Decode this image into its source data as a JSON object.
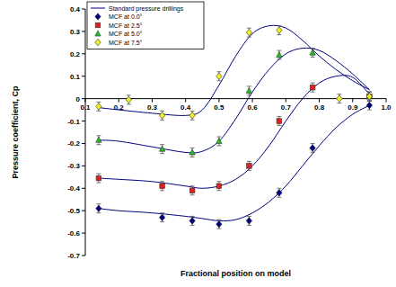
{
  "chart_data": {
    "type": "scatter",
    "x_label": "Fractional position on model",
    "y_label": "Pressure coefficient, Cp",
    "xlim": [
      0.1,
      1
    ],
    "ylim": [
      -0.7,
      0.4
    ],
    "xticks": [
      0.1,
      0.2,
      0.3,
      0.4,
      0.5,
      0.6,
      0.7,
      0.8,
      0.9,
      {
        "value": 1,
        "label": "1.0"
      }
    ],
    "yticks": [
      -0.7,
      -0.6,
      -0.5,
      -0.4,
      -0.3,
      -0.2,
      -0.1,
      0,
      0.1,
      0.2,
      0.3,
      0.4
    ],
    "grid": false,
    "legend": "upper left",
    "series": [
      {
        "name": "Standard pressure drillings",
        "type": "line",
        "color": "#000080",
        "line_style": "solid",
        "x": [
          0.14,
          0.2,
          0.3,
          0.4,
          0.45,
          0.5,
          0.55,
          0.6,
          0.65,
          0.7,
          0.75,
          0.8,
          0.85,
          0.9,
          0.95,
          null,
          0.14,
          0.2,
          0.3,
          0.4,
          0.45,
          0.5,
          0.55,
          0.6,
          0.65,
          0.7,
          0.75,
          0.8,
          0.85,
          0.9,
          0.95,
          null,
          0.14,
          0.2,
          0.3,
          0.4,
          0.45,
          0.5,
          0.55,
          0.6,
          0.65,
          0.7,
          0.75,
          0.8,
          0.85,
          0.9,
          0.95,
          null,
          0.14,
          0.2,
          0.3,
          0.4,
          0.45,
          0.5,
          0.55,
          0.6,
          0.65,
          0.7,
          0.75,
          0.8,
          0.85,
          0.9,
          0.95
        ],
        "values": [
          -0.49,
          -0.5,
          -0.51,
          -0.525,
          -0.535,
          -0.545,
          -0.54,
          -0.51,
          -0.46,
          -0.39,
          -0.3,
          -0.21,
          -0.13,
          -0.07,
          -0.03,
          null,
          -0.355,
          -0.36,
          -0.37,
          -0.39,
          -0.4,
          -0.39,
          -0.36,
          -0.3,
          -0.21,
          -0.1,
          0.0,
          0.07,
          0.1,
          0.095,
          0.02,
          null,
          -0.185,
          -0.19,
          -0.215,
          -0.24,
          -0.235,
          -0.19,
          -0.09,
          0.03,
          0.13,
          0.2,
          0.225,
          0.215,
          0.17,
          0.11,
          0.04,
          null,
          -0.04,
          -0.05,
          -0.065,
          -0.075,
          -0.05,
          0.06,
          0.19,
          0.29,
          0.325,
          0.315,
          0.26,
          0.19,
          0.13,
          0.08,
          0.04
        ]
      },
      {
        "name": "MCF at 0.0°",
        "type": "scatter",
        "color": "#000080",
        "marker": "diamond",
        "x": [
          0.14,
          0.33,
          0.42,
          0.5,
          0.59,
          0.68,
          0.78,
          0.95
        ],
        "values": [
          -0.49,
          -0.53,
          -0.545,
          -0.56,
          -0.545,
          -0.42,
          -0.22,
          -0.03
        ],
        "errors": [
          0.02,
          0.02,
          0.02,
          0.02,
          0.02,
          0.02,
          0.02,
          0.02
        ]
      },
      {
        "name": "MCF at 2.5°",
        "type": "scatter",
        "color": "#e02020",
        "marker": "square",
        "x": [
          0.14,
          0.33,
          0.42,
          0.5,
          0.59,
          0.68,
          0.78,
          0.95
        ],
        "values": [
          -0.355,
          -0.39,
          -0.41,
          -0.39,
          -0.3,
          -0.1,
          0.05,
          0.01
        ],
        "errors": [
          0.02,
          0.02,
          0.02,
          0.02,
          0.02,
          0.02,
          0.02,
          0.02
        ]
      },
      {
        "name": "MCF at 5.0°",
        "type": "scatter",
        "color": "#20c020",
        "marker": "triangle",
        "x": [
          0.14,
          0.33,
          0.42,
          0.5,
          0.59,
          0.68,
          0.78,
          0.95
        ],
        "values": [
          -0.185,
          -0.225,
          -0.24,
          -0.19,
          0.035,
          0.195,
          0.205,
          0.01
        ],
        "errors": [
          0.02,
          0.02,
          0.02,
          0.02,
          0.02,
          0.02,
          0.02,
          0.02
        ]
      },
      {
        "name": "MCF at 7.5°",
        "type": "scatter",
        "color": "#f0f020",
        "marker": "diamond",
        "x": [
          0.14,
          0.23,
          0.33,
          0.42,
          0.5,
          0.59,
          0.68,
          0.86,
          0.95
        ],
        "values": [
          -0.035,
          -0.005,
          -0.075,
          -0.075,
          0.1,
          0.295,
          0.305,
          0.0,
          0.01
        ],
        "errors": [
          0.02,
          0.02,
          0.02,
          0.02,
          0.02,
          0.02,
          0.02,
          0.02,
          0.02
        ]
      }
    ]
  }
}
